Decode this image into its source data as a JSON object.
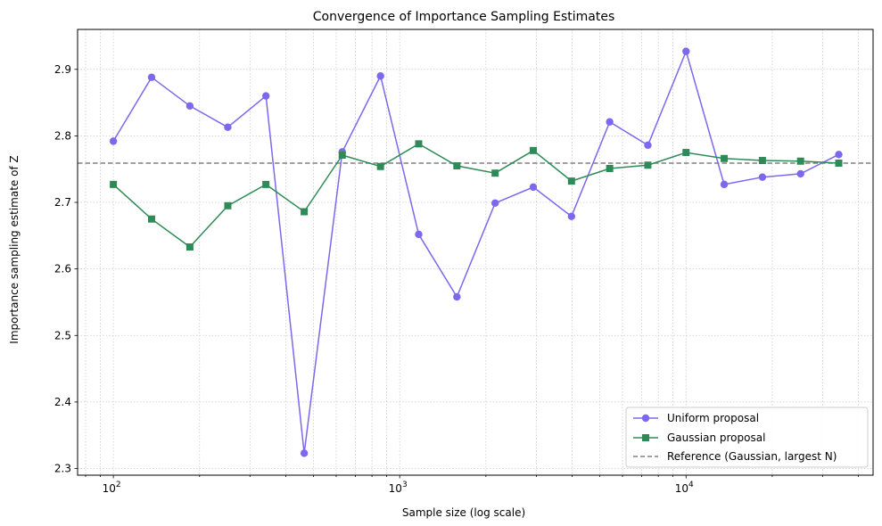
{
  "chart_data": {
    "type": "line",
    "title": "Convergence of Importance Sampling Estimates",
    "xlabel": "Sample size (log scale)",
    "ylabel": "Importance sampling estimate of Z",
    "xscale": "log",
    "xlim": [
      75,
      45000
    ],
    "ylim": [
      2.29,
      2.96
    ],
    "grid": true,
    "legend_position": "lower-right",
    "x_ticks": [
      {
        "value": 100,
        "base": "10",
        "exp": "2"
      },
      {
        "value": 1000,
        "base": "10",
        "exp": "3"
      },
      {
        "value": 10000,
        "base": "10",
        "exp": "4"
      }
    ],
    "y_ticks": [
      "2.3",
      "2.4",
      "2.5",
      "2.6",
      "2.7",
      "2.8",
      "2.9"
    ],
    "x": [
      100,
      136,
      185,
      251,
      341,
      464,
      630,
      857,
      1165,
      1584,
      2154,
      2928,
      3981,
      5412,
      7356,
      10000,
      13590,
      18480,
      25120,
      34150
    ],
    "series": [
      {
        "name": "Uniform proposal",
        "color": "#7b68ee",
        "marker": "circle",
        "values": [
          2.792,
          2.888,
          2.845,
          2.813,
          2.86,
          2.323,
          2.776,
          2.89,
          2.652,
          2.558,
          2.699,
          2.723,
          2.679,
          2.821,
          2.786,
          2.927,
          2.727,
          2.738,
          2.743,
          2.772
        ]
      },
      {
        "name": "Gaussian proposal",
        "color": "#2e8b57",
        "marker": "square",
        "values": [
          2.727,
          2.675,
          2.633,
          2.695,
          2.727,
          2.686,
          2.771,
          2.754,
          2.788,
          2.755,
          2.744,
          2.778,
          2.732,
          2.751,
          2.756,
          2.775,
          2.766,
          2.763,
          2.762,
          2.759
        ]
      }
    ],
    "reference": {
      "name": "Reference (Gaussian, largest N)",
      "value": 2.759,
      "color": "#808080",
      "style": "dashed"
    }
  }
}
